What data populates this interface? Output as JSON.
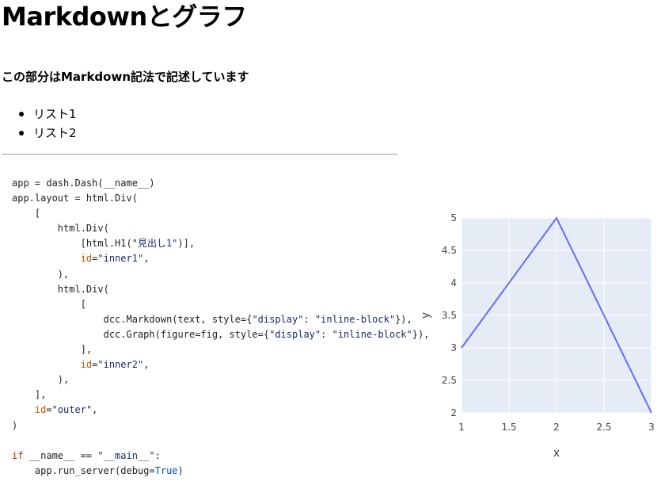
{
  "title": "Markdownとグラフ",
  "markdown": {
    "heading": "この部分はMarkdown記法で記述しています",
    "list": [
      "リスト1",
      "リスト2"
    ]
  },
  "code_lines": [
    [
      {
        "t": "app = dash.Dash(__name__)",
        "c": ""
      }
    ],
    [
      {
        "t": "app.layout = html.Div(",
        "c": ""
      }
    ],
    [
      {
        "t": "    [",
        "c": ""
      }
    ],
    [
      {
        "t": "        html.Div(",
        "c": ""
      }
    ],
    [
      {
        "t": "            [html.H1(",
        "c": ""
      },
      {
        "t": "\"見出し1\"",
        "c": "str"
      },
      {
        "t": ")],",
        "c": ""
      }
    ],
    [
      {
        "t": "            ",
        "c": ""
      },
      {
        "t": "id",
        "c": "attr"
      },
      {
        "t": "=",
        "c": ""
      },
      {
        "t": "\"inner1\"",
        "c": "str"
      },
      {
        "t": ",",
        "c": ""
      }
    ],
    [
      {
        "t": "        ),",
        "c": ""
      }
    ],
    [
      {
        "t": "        html.Div(",
        "c": ""
      }
    ],
    [
      {
        "t": "            [",
        "c": ""
      }
    ],
    [
      {
        "t": "                dcc.Markdown(text, style={",
        "c": ""
      },
      {
        "t": "\"display\"",
        "c": "str"
      },
      {
        "t": ": ",
        "c": ""
      },
      {
        "t": "\"inline-block\"",
        "c": "str"
      },
      {
        "t": "}),",
        "c": ""
      }
    ],
    [
      {
        "t": "                dcc.Graph(figure=fig, style={",
        "c": ""
      },
      {
        "t": "\"display\"",
        "c": "str"
      },
      {
        "t": ": ",
        "c": ""
      },
      {
        "t": "\"inline-block\"",
        "c": "str"
      },
      {
        "t": "}),",
        "c": ""
      }
    ],
    [
      {
        "t": "            ],",
        "c": ""
      }
    ],
    [
      {
        "t": "            ",
        "c": ""
      },
      {
        "t": "id",
        "c": "attr"
      },
      {
        "t": "=",
        "c": ""
      },
      {
        "t": "\"inner2\"",
        "c": "str"
      },
      {
        "t": ",",
        "c": ""
      }
    ],
    [
      {
        "t": "        ),",
        "c": ""
      }
    ],
    [
      {
        "t": "    ],",
        "c": ""
      }
    ],
    [
      {
        "t": "    ",
        "c": ""
      },
      {
        "t": "id",
        "c": "attr"
      },
      {
        "t": "=",
        "c": ""
      },
      {
        "t": "\"outer\"",
        "c": "str"
      },
      {
        "t": ",",
        "c": ""
      }
    ],
    [
      {
        "t": ")",
        "c": ""
      }
    ],
    [
      {
        "t": "",
        "c": ""
      }
    ],
    [
      {
        "t": "if",
        "c": "kw"
      },
      {
        "t": " __name__ == ",
        "c": ""
      },
      {
        "t": "\"__main__\"",
        "c": "str"
      },
      {
        "t": ":",
        "c": ""
      }
    ],
    [
      {
        "t": "    app.run_server(debug=",
        "c": ""
      },
      {
        "t": "True",
        "c": "const"
      },
      {
        "t": ")",
        "c": ""
      }
    ]
  ],
  "colors": {
    "plot_bg": "#e5ecf6",
    "grid": "#ffffff",
    "line": "#636efa"
  },
  "chart_data": {
    "type": "line",
    "x": [
      1,
      2,
      3
    ],
    "series": [
      {
        "values": [
          3,
          5,
          2
        ]
      }
    ],
    "xlabel": "x",
    "ylabel": "y",
    "xlim": [
      1,
      3
    ],
    "ylim": [
      2,
      5
    ],
    "xticks": [
      1,
      1.5,
      2,
      2.5,
      3
    ],
    "yticks": [
      2,
      2.5,
      3,
      3.5,
      4,
      4.5,
      5
    ],
    "xtick_labels": [
      "1",
      "1.5",
      "2",
      "2.5",
      "3"
    ],
    "ytick_labels": [
      "2",
      "2.5",
      "3",
      "3.5",
      "4",
      "4.5",
      "5"
    ],
    "grid": true
  }
}
